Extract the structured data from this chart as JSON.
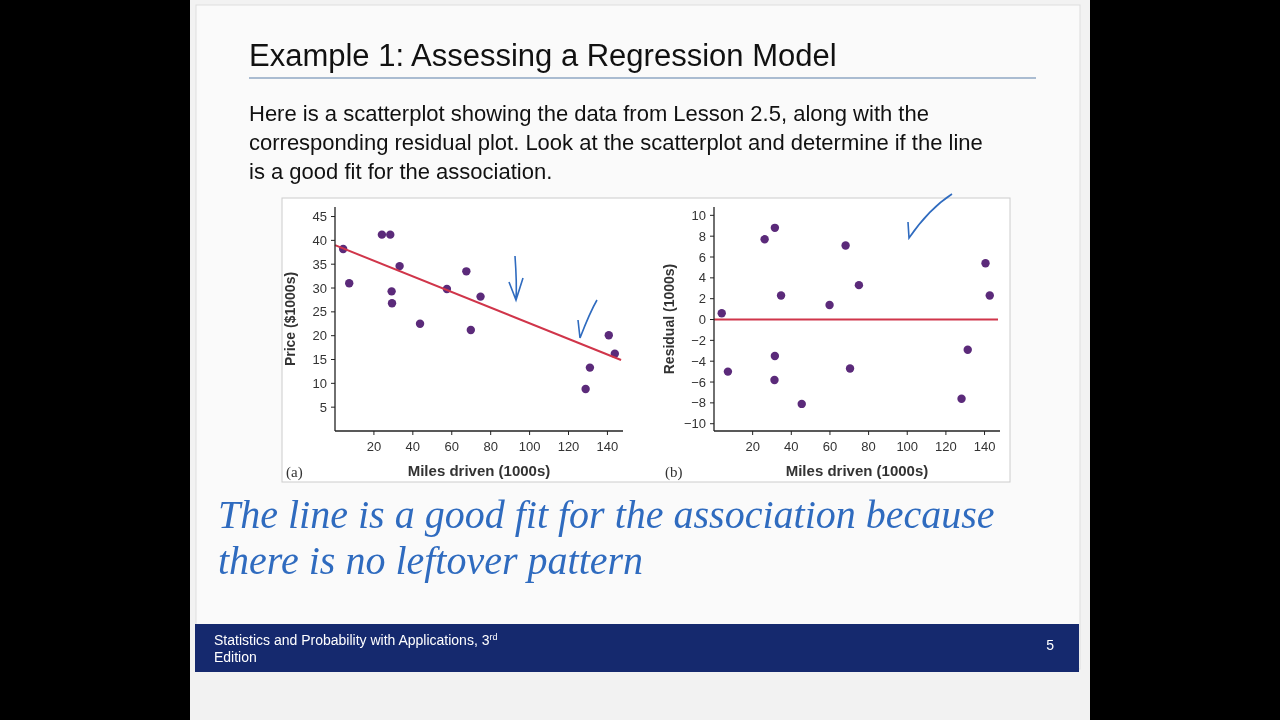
{
  "chart_data": [
    {
      "type": "scatter",
      "title": "Example 1: Assessing a Regression Model",
      "subtitle": "Here is a scatterplot showing the data from Lesson 2.5, along with the corresponding residual plot. Look at the scatterplot and determine if the line is a good fit for the association.",
      "xlabel": "Miles driven (1000s)",
      "ylabel": "Price ($1000s)",
      "xlim": [
        0,
        148
      ],
      "ylim": [
        0,
        47
      ],
      "xticks": [
        20,
        40,
        60,
        80,
        100,
        120,
        140
      ],
      "yticks": [
        5,
        10,
        15,
        20,
        25,
        30,
        35,
        40,
        45
      ],
      "marker": "circle",
      "series": [
        {
          "color": "#5b2a7a",
          "x": [
            4.2,
            7.3,
            24.1,
            28.4,
            29.1,
            29.3,
            33.2,
            43.7,
            57.5,
            67.5,
            69.8,
            74.8,
            128.8,
            131.0,
            140.7,
            143.8
          ],
          "values": [
            38.2,
            31.0,
            41.2,
            41.2,
            29.3,
            26.8,
            34.6,
            22.5,
            29.8,
            33.5,
            21.2,
            28.2,
            8.8,
            13.3,
            20.1,
            16.2
          ]
        },
        {
          "type": "line",
          "marker": "none",
          "color": "#d0354a",
          "x": [
            0,
            147
          ],
          "values": [
            39.0,
            14.9
          ]
        }
      ],
      "annotations": [
        "(a)",
        "The line is a good fit for the association because there is no leftover pattern",
        "Statistics and Probability with Applications, 3$^{rd}$ Edition",
        "5"
      ]
    },
    {
      "type": "scatter",
      "xlabel": "Miles driven (1000s)",
      "ylabel": "Residual (1000s)",
      "xlim": [
        0,
        148
      ],
      "ylim": [
        -10.7,
        10.8
      ],
      "xticks": [
        20,
        40,
        60,
        80,
        100,
        120,
        140
      ],
      "yticks": [
        {
          "value": -10,
          "label": "−10"
        },
        {
          "value": -8,
          "label": "−8"
        },
        {
          "value": -6,
          "label": "−6"
        },
        {
          "value": -4,
          "label": "−4"
        },
        {
          "value": -2,
          "label": "−2"
        },
        0,
        2,
        4,
        6,
        8,
        10
      ],
      "marker": "circle",
      "series": [
        {
          "color": "#5b2a7a",
          "x": [
            4.0,
            7.2,
            26.2,
            31.5,
            31.5,
            31.3,
            34.7,
            45.4,
            59.8,
            68.1,
            70.4,
            75.0,
            128.1,
            131.3,
            140.5,
            142.7
          ],
          "values": [
            0.6,
            -5.0,
            7.7,
            8.8,
            -3.5,
            -5.8,
            2.3,
            -8.1,
            1.4,
            7.1,
            -4.7,
            3.3,
            -7.6,
            -2.9,
            5.4,
            2.3
          ]
        }
      ],
      "ref_lines": [
        {
          "axis": "y",
          "value": 0,
          "color": "#d0354a"
        }
      ],
      "annotations": [
        "(b)"
      ]
    }
  ]
}
